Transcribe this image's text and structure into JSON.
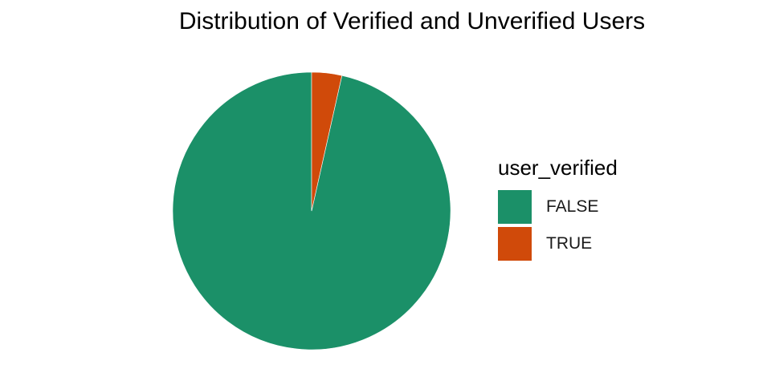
{
  "chart_data": {
    "type": "pie",
    "title": "Distribution of Verified and Unverified Users",
    "legend_title": "user_verified",
    "legend_position": "right",
    "slices": [
      {
        "label": "FALSE",
        "value": 96.5,
        "color": "#1b9068"
      },
      {
        "label": "TRUE",
        "value": 3.5,
        "color": "#d04a0a"
      }
    ]
  }
}
